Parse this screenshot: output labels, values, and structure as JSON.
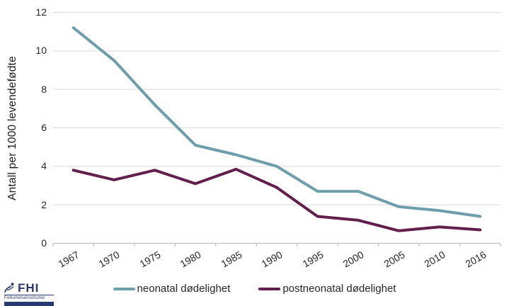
{
  "chart_data": {
    "type": "line",
    "categories": [
      "1967",
      "1970",
      "1975",
      "1980",
      "1985",
      "1990",
      "1995",
      "2000",
      "2005",
      "2010",
      "2016"
    ],
    "series": [
      {
        "name": "neonatal dødelighet",
        "color": "#6F9EAB",
        "values": [
          11.2,
          9.5,
          7.2,
          5.1,
          4.6,
          4.0,
          2.7,
          2.7,
          1.9,
          1.7,
          1.4
        ]
      },
      {
        "name": "postneonatal dødelighet",
        "color": "#621F4B",
        "values": [
          3.8,
          3.3,
          3.8,
          3.1,
          3.85,
          2.9,
          1.4,
          1.2,
          0.65,
          0.85,
          0.7
        ]
      }
    ],
    "title": "",
    "xlabel": "",
    "ylabel": "Antall per 1000 levendefødte",
    "ylim": [
      0,
      12
    ],
    "yticks": [
      0,
      2,
      4,
      6,
      8,
      10,
      12
    ],
    "grid": true,
    "legend_position": "bottom",
    "colors": {
      "gridline": "#D9D9D9",
      "axis": "#BFBFBF",
      "tick_text": "#262626"
    }
  },
  "logo": {
    "name": "FHI",
    "subtitle": "Folkehelseinstituttet",
    "color": "#28396F"
  }
}
